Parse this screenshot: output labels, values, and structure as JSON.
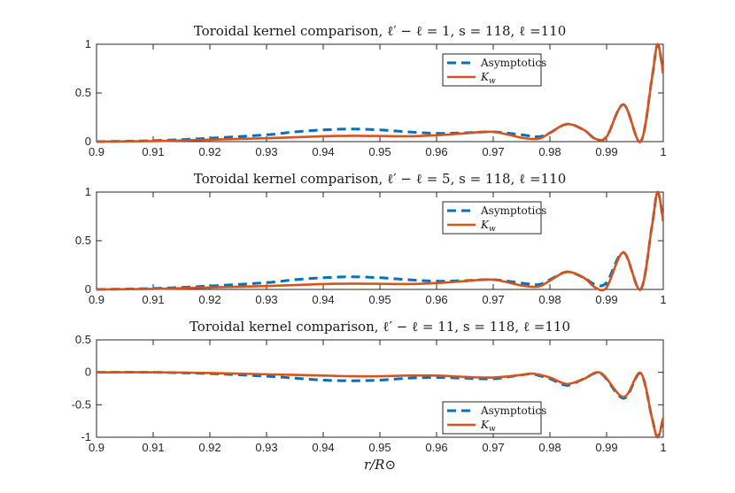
{
  "figure_xlabel": "r/R⊙",
  "chart_data": [
    {
      "type": "line",
      "title": "Toroidal kernel comparison, ℓ′ − ℓ = 1, s = 118, ℓ =110",
      "xlabel": "",
      "ylabel": "",
      "xlim": [
        0.9,
        1.0
      ],
      "ylim": [
        0,
        1
      ],
      "xticks": [
        "0.9",
        "0.91",
        "0.92",
        "0.93",
        "0.94",
        "0.95",
        "0.96",
        "0.97",
        "0.98",
        "0.99",
        "1"
      ],
      "yticks": [
        "0",
        "0.5",
        "1"
      ],
      "legend_position": "top-right",
      "series": [
        {
          "name": "Asymptotics",
          "style": "dashed",
          "color": "#0072BD",
          "x": [
            0.9,
            0.91,
            0.92,
            0.93,
            0.935,
            0.94,
            0.945,
            0.95,
            0.955,
            0.96,
            0.965,
            0.97,
            0.975,
            0.978,
            0.98,
            0.983,
            0.986,
            0.988,
            0.99,
            0.993,
            0.996,
            0.998,
            0.999,
            1.0
          ],
          "y": [
            0.0,
            0.01,
            0.035,
            0.07,
            0.1,
            0.12,
            0.13,
            0.12,
            0.1,
            0.085,
            0.09,
            0.1,
            0.07,
            0.05,
            0.09,
            0.18,
            0.12,
            0.03,
            0.05,
            0.38,
            0.0,
            0.65,
            1.0,
            0.7
          ]
        },
        {
          "name": "K_w",
          "style": "solid",
          "color": "#D95319",
          "x": [
            0.9,
            0.91,
            0.92,
            0.93,
            0.935,
            0.94,
            0.945,
            0.95,
            0.955,
            0.96,
            0.965,
            0.97,
            0.975,
            0.978,
            0.98,
            0.983,
            0.986,
            0.988,
            0.99,
            0.993,
            0.996,
            0.998,
            0.999,
            1.0
          ],
          "y": [
            0.0,
            0.005,
            0.02,
            0.035,
            0.045,
            0.055,
            0.06,
            0.058,
            0.055,
            0.065,
            0.085,
            0.1,
            0.04,
            0.03,
            0.09,
            0.18,
            0.12,
            0.03,
            0.05,
            0.38,
            0.0,
            0.65,
            1.0,
            0.7
          ]
        }
      ]
    },
    {
      "type": "line",
      "title": "Toroidal kernel comparison, ℓ′ − ℓ = 5, s = 118, ℓ =110",
      "xlabel": "",
      "ylabel": "",
      "xlim": [
        0.9,
        1.0
      ],
      "ylim": [
        0,
        1
      ],
      "xticks": [
        "0.9",
        "0.91",
        "0.92",
        "0.93",
        "0.94",
        "0.95",
        "0.96",
        "0.97",
        "0.98",
        "0.99",
        "1"
      ],
      "yticks": [
        "0",
        "0.5",
        "1"
      ],
      "legend_position": "top-right",
      "series": [
        {
          "name": "Asymptotics",
          "style": "dashed",
          "color": "#0072BD",
          "x": [
            0.9,
            0.91,
            0.92,
            0.93,
            0.935,
            0.94,
            0.945,
            0.95,
            0.955,
            0.96,
            0.965,
            0.97,
            0.975,
            0.978,
            0.98,
            0.983,
            0.986,
            0.988,
            0.99,
            0.993,
            0.996,
            0.998,
            0.999,
            1.0
          ],
          "y": [
            0.0,
            0.01,
            0.035,
            0.07,
            0.1,
            0.12,
            0.13,
            0.12,
            0.1,
            0.085,
            0.09,
            0.1,
            0.065,
            0.05,
            0.1,
            0.18,
            0.12,
            0.05,
            0.07,
            0.38,
            0.0,
            0.65,
            1.0,
            0.7
          ]
        },
        {
          "name": "K_w",
          "style": "solid",
          "color": "#D95319",
          "x": [
            0.9,
            0.91,
            0.92,
            0.93,
            0.935,
            0.94,
            0.945,
            0.95,
            0.955,
            0.96,
            0.965,
            0.97,
            0.975,
            0.978,
            0.98,
            0.983,
            0.986,
            0.988,
            0.99,
            0.993,
            0.996,
            0.998,
            0.999,
            1.0
          ],
          "y": [
            0.0,
            0.005,
            0.02,
            0.035,
            0.045,
            0.055,
            0.06,
            0.058,
            0.055,
            0.065,
            0.085,
            0.1,
            0.04,
            0.03,
            0.09,
            0.18,
            0.12,
            0.02,
            0.02,
            0.38,
            0.0,
            0.65,
            1.0,
            0.7
          ]
        }
      ]
    },
    {
      "type": "line",
      "title": "Toroidal kernel comparison, ℓ′ − ℓ = 11, s = 118, ℓ =110",
      "xlabel": "r/R⊙",
      "ylabel": "",
      "xlim": [
        0.9,
        1.0
      ],
      "ylim": [
        -1,
        0.5
      ],
      "xticks": [
        "0.9",
        "0.91",
        "0.92",
        "0.93",
        "0.94",
        "0.95",
        "0.96",
        "0.97",
        "0.98",
        "0.99",
        "1"
      ],
      "yticks": [
        "-1",
        "-0.5",
        "0",
        "0.5"
      ],
      "legend_position": "bottom-right",
      "series": [
        {
          "name": "Asymptotics",
          "style": "dashed",
          "color": "#0072BD",
          "x": [
            0.9,
            0.91,
            0.92,
            0.93,
            0.935,
            0.94,
            0.945,
            0.95,
            0.955,
            0.96,
            0.965,
            0.97,
            0.975,
            0.977,
            0.98,
            0.983,
            0.986,
            0.989,
            0.993,
            0.996,
            0.998,
            0.999,
            1.0
          ],
          "y": [
            0.0,
            0.0,
            -0.02,
            -0.06,
            -0.09,
            -0.12,
            -0.13,
            -0.12,
            -0.09,
            -0.08,
            -0.09,
            -0.1,
            -0.04,
            -0.03,
            -0.1,
            -0.2,
            -0.1,
            -0.02,
            -0.4,
            -0.02,
            -0.7,
            -1.0,
            -0.7
          ]
        },
        {
          "name": "K_w",
          "style": "solid",
          "color": "#D95319",
          "x": [
            0.9,
            0.91,
            0.92,
            0.93,
            0.935,
            0.94,
            0.945,
            0.95,
            0.955,
            0.96,
            0.965,
            0.97,
            0.975,
            0.977,
            0.98,
            0.983,
            0.986,
            0.989,
            0.993,
            0.996,
            0.998,
            0.999,
            1.0
          ],
          "y": [
            0.0,
            0.0,
            -0.01,
            -0.03,
            -0.04,
            -0.05,
            -0.06,
            -0.06,
            -0.05,
            -0.05,
            -0.07,
            -0.08,
            -0.04,
            -0.02,
            -0.08,
            -0.18,
            -0.1,
            -0.01,
            -0.38,
            -0.01,
            -0.7,
            -1.0,
            -0.7
          ]
        }
      ]
    }
  ]
}
